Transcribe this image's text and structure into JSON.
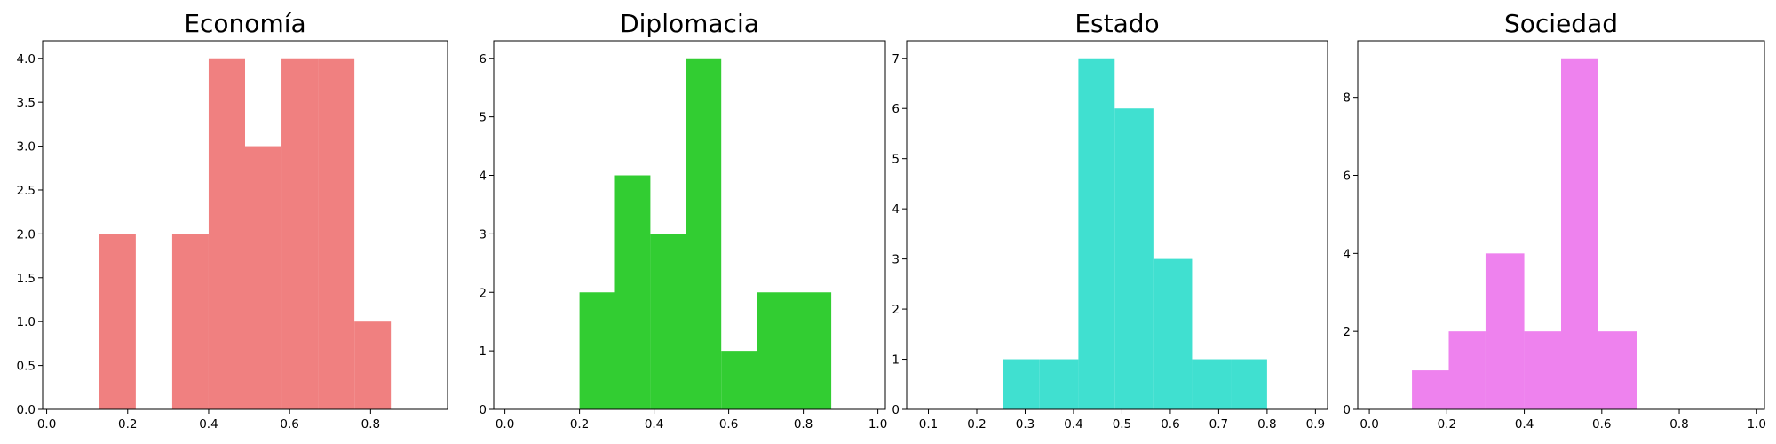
{
  "chart_data": [
    {
      "type": "bar",
      "title": "Economía",
      "color": "#F08080",
      "xlim": [
        -0.01,
        0.99
      ],
      "ylim": [
        0,
        4.2
      ],
      "xticks": [
        0.0,
        0.2,
        0.4,
        0.6,
        0.8
      ],
      "xtick_labels": [
        "0.0",
        "0.2",
        "0.4",
        "0.6",
        "0.8"
      ],
      "yticks": [
        0.0,
        0.5,
        1.0,
        1.5,
        2.0,
        2.5,
        3.0,
        3.5,
        4.0
      ],
      "ytick_labels": [
        "0.0",
        "0.5",
        "1.0",
        "1.5",
        "2.0",
        "2.5",
        "3.0",
        "3.5",
        "4.0"
      ],
      "bin_edges": [
        0.13,
        0.22,
        0.31,
        0.4,
        0.49,
        0.58,
        0.67,
        0.76,
        0.85
      ],
      "counts": [
        2,
        0,
        2,
        4,
        3,
        4,
        4,
        1
      ]
    },
    {
      "type": "bar",
      "title": "Diplomacia",
      "color": "#32CD32",
      "xlim": [
        -0.03,
        1.02
      ],
      "ylim": [
        0,
        6.3
      ],
      "xticks": [
        0.0,
        0.2,
        0.4,
        0.6,
        0.8,
        1.0
      ],
      "xtick_labels": [
        "0.0",
        "0.2",
        "0.4",
        "0.6",
        "0.8",
        "1.0"
      ],
      "yticks": [
        0,
        1,
        2,
        3,
        4,
        5,
        6
      ],
      "ytick_labels": [
        "0",
        "1",
        "2",
        "3",
        "4",
        "5",
        "6"
      ],
      "bin_edges": [
        0.2,
        0.295,
        0.39,
        0.485,
        0.58,
        0.675,
        0.77,
        0.875
      ],
      "counts": [
        2,
        4,
        3,
        6,
        1,
        2,
        2
      ]
    },
    {
      "type": "bar",
      "title": "Estado",
      "color": "#40E0D0",
      "xlim": [
        0.055,
        0.925
      ],
      "ylim": [
        0,
        7.35
      ],
      "xticks": [
        0.1,
        0.2,
        0.3,
        0.4,
        0.5,
        0.6,
        0.7,
        0.8,
        0.9
      ],
      "xtick_labels": [
        "0.1",
        "0.2",
        "0.3",
        "0.4",
        "0.5",
        "0.6",
        "0.7",
        "0.8",
        "0.9"
      ],
      "yticks": [
        0,
        1,
        2,
        3,
        4,
        5,
        6,
        7
      ],
      "ytick_labels": [
        "0",
        "1",
        "2",
        "3",
        "4",
        "5",
        "6",
        "7"
      ],
      "bin_edges": [
        0.255,
        0.33,
        0.41,
        0.485,
        0.565,
        0.645,
        0.725,
        0.8
      ],
      "counts": [
        1,
        1,
        7,
        6,
        3,
        1,
        1
      ]
    },
    {
      "type": "bar",
      "title": "Sociedad",
      "color": "#EE82EE",
      "xlim": [
        -0.03,
        1.02
      ],
      "ylim": [
        0,
        9.45
      ],
      "xticks": [
        0.0,
        0.2,
        0.4,
        0.6,
        0.8,
        1.0
      ],
      "xtick_labels": [
        "0.0",
        "0.2",
        "0.4",
        "0.6",
        "0.8",
        "1.0"
      ],
      "yticks": [
        0,
        2,
        4,
        6,
        8
      ],
      "ytick_labels": [
        "0",
        "2",
        "4",
        "6",
        "8"
      ],
      "bin_edges": [
        0.11,
        0.205,
        0.3,
        0.4,
        0.495,
        0.59,
        0.69
      ],
      "counts": [
        1,
        2,
        4,
        2,
        9,
        2
      ]
    }
  ]
}
